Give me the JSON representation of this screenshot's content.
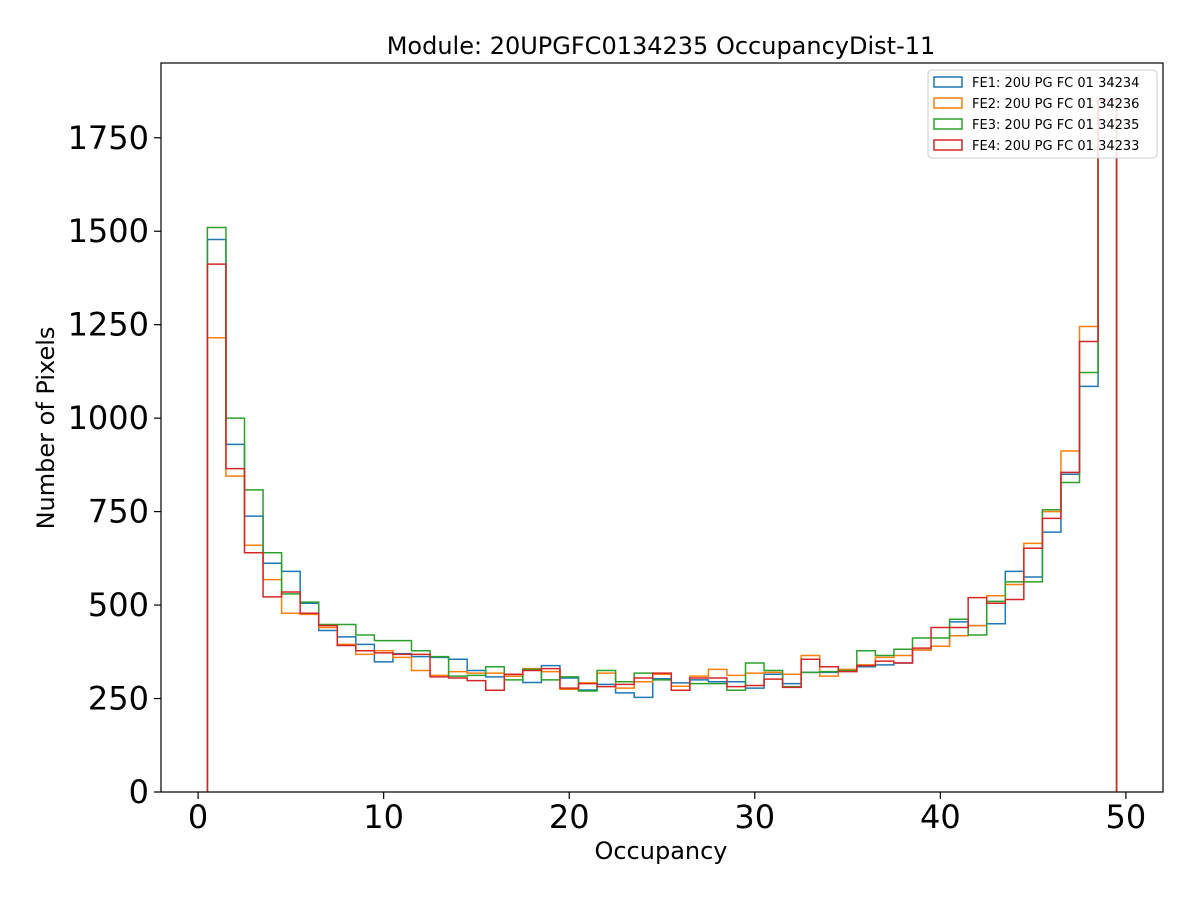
{
  "chart_data": {
    "type": "histogram",
    "title": "Module: 20UPGFC0134235 OccupancyDist-11",
    "xlabel": "Occupancy",
    "ylabel": "Number of Pixels",
    "xlim": [
      -2,
      52
    ],
    "ylim": [
      0,
      1950
    ],
    "xticks": [
      0,
      10,
      20,
      30,
      40,
      50
    ],
    "yticks": [
      0,
      250,
      500,
      750,
      1000,
      1250,
      1500,
      1750
    ],
    "bins": {
      "start": 0.5,
      "width": 1,
      "count": 49
    },
    "legend_position": "top-right",
    "series": [
      {
        "name": "FE1: 20U PG FC 01 34234",
        "color": "#1f77b4",
        "values": [
          1478,
          930,
          738,
          612,
          590,
          505,
          432,
          415,
          395,
          348,
          370,
          362,
          360,
          355,
          325,
          308,
          310,
          293,
          338,
          305,
          273,
          288,
          265,
          253,
          303,
          292,
          300,
          295,
          295,
          278,
          315,
          290,
          320,
          320,
          325,
          335,
          340,
          345,
          380,
          390,
          455,
          445,
          450,
          590,
          575,
          695,
          850,
          1085,
          1850
        ]
      },
      {
        "name": "FE2: 20U PG FC 01 34236",
        "color": "#ff7f0e",
        "values": [
          1215,
          845,
          660,
          568,
          478,
          475,
          440,
          395,
          368,
          378,
          360,
          325,
          312,
          322,
          318,
          318,
          310,
          330,
          322,
          275,
          292,
          318,
          278,
          295,
          315,
          283,
          310,
          328,
          312,
          318,
          320,
          315,
          365,
          310,
          328,
          340,
          360,
          365,
          380,
          390,
          418,
          445,
          525,
          555,
          665,
          750,
          912,
          1245,
          1850
        ]
      },
      {
        "name": "FE3: 20U PG FC 01 34235",
        "color": "#2ca02c",
        "values": [
          1510,
          1000,
          808,
          640,
          530,
          508,
          448,
          448,
          420,
          405,
          405,
          378,
          362,
          310,
          312,
          335,
          300,
          328,
          300,
          308,
          270,
          325,
          295,
          318,
          300,
          272,
          290,
          290,
          272,
          345,
          325,
          282,
          320,
          322,
          325,
          378,
          365,
          382,
          412,
          412,
          462,
          420,
          510,
          562,
          562,
          755,
          828,
          1122,
          1850
        ]
      },
      {
        "name": "FE4: 20U PG FC 01 34233",
        "color": "#d62728",
        "values": [
          1412,
          865,
          640,
          522,
          535,
          478,
          445,
          392,
          378,
          372,
          368,
          368,
          308,
          305,
          298,
          272,
          315,
          325,
          330,
          278,
          290,
          282,
          288,
          305,
          318,
          272,
          305,
          305,
          282,
          285,
          302,
          280,
          355,
          335,
          322,
          338,
          350,
          345,
          385,
          440,
          440,
          520,
          505,
          515,
          652,
          732,
          855,
          1205,
          1850
        ]
      }
    ]
  }
}
